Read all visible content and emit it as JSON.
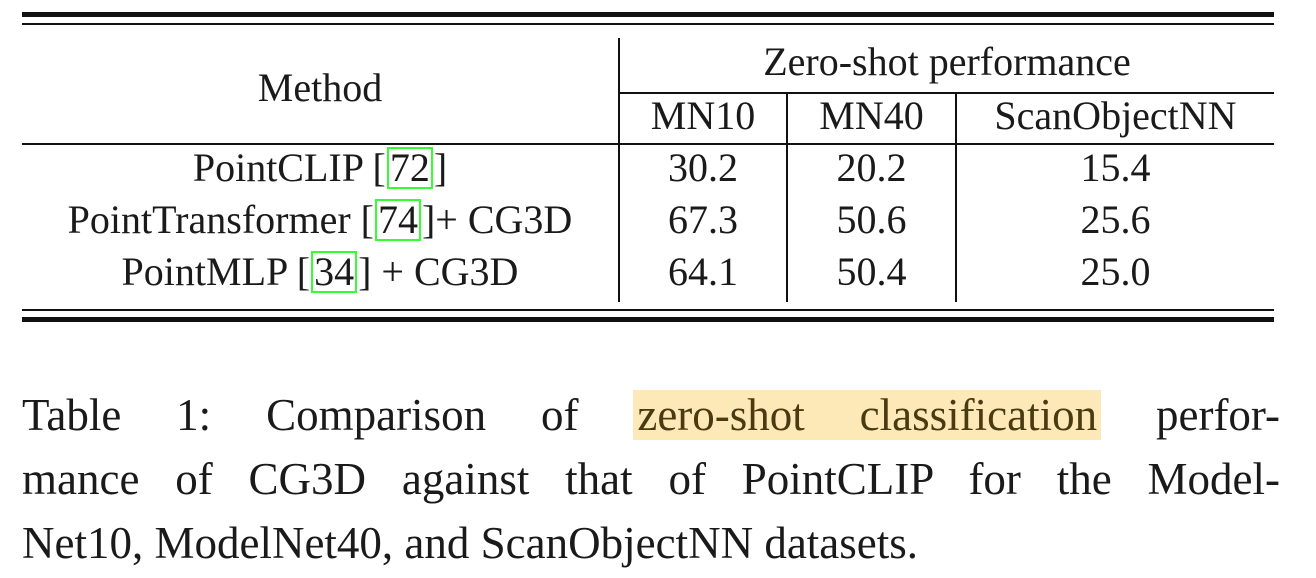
{
  "table": {
    "header_method": "Method",
    "header_group": "Zero-shot performance",
    "columns": [
      "MN10",
      "MN40",
      "ScanObjectNN"
    ],
    "rows": [
      {
        "method_prefix": "PointCLIP [",
        "ref": "72",
        "method_suffix": "]",
        "values": [
          "30.2",
          "20.2",
          "15.4"
        ]
      },
      {
        "method_prefix": "PointTransformer [",
        "ref": "74",
        "method_suffix": "]+ CG3D",
        "values": [
          "67.3",
          "50.6",
          "25.6"
        ]
      },
      {
        "method_prefix": "PointMLP [",
        "ref": "34",
        "method_suffix": "] + CG3D",
        "values": [
          "64.1",
          "50.4",
          "25.0"
        ]
      }
    ],
    "ref_box_color": "#33ff33"
  },
  "caption": {
    "line1_prefix": "Table 1:  Comparison of ",
    "highlight": "zero-shot classification",
    "line1_suffix": " perfor-",
    "line2": "mance of CG3D against that of PointCLIP for the Model-",
    "line3": "Net10, ModelNet40, and ScanObjectNN datasets.",
    "highlight_color": "#fde9b8"
  }
}
